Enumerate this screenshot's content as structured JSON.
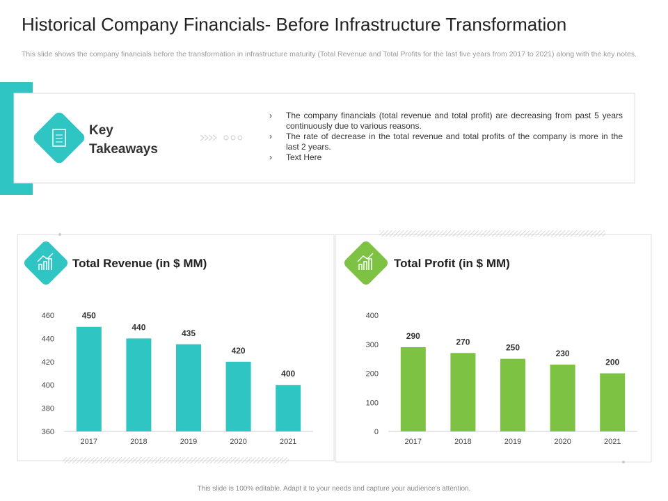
{
  "title": "Historical Company Financials- Before Infrastructure Transformation",
  "subtitle": "This slide shows the company financials before the transformation in infrastructure maturity (Total Revenue and Total Profits for the last five years from 2017 to 2021) along with the key notes.",
  "takeaways": {
    "heading": "Key Takeaways",
    "points": [
      "The company financials (total revenue and total profit) are decreasing from past 5 years continuously due to various reasons.",
      "The rate of decrease in the total revenue and total profits of the company is more in the last 2 years.",
      "Text Here"
    ]
  },
  "footer": "This slide is 100% editable. Adapt it to your needs and capture your audience's attention.",
  "chart_data": [
    {
      "type": "bar",
      "title": "Total Revenue (in $ MM)",
      "categories": [
        "2017",
        "2018",
        "2019",
        "2020",
        "2021"
      ],
      "values": [
        450,
        440,
        435,
        420,
        400
      ],
      "color": "#2ec5c3",
      "ylim": [
        360,
        460
      ],
      "yticks": [
        360,
        380,
        400,
        420,
        440,
        460
      ]
    },
    {
      "type": "bar",
      "title": "Total Profit (in $ MM)",
      "categories": [
        "2017",
        "2018",
        "2019",
        "2020",
        "2021"
      ],
      "values": [
        290,
        270,
        250,
        230,
        200
      ],
      "color": "#7dc242",
      "ylim": [
        0,
        400
      ],
      "yticks": [
        0,
        100,
        200,
        300,
        400
      ]
    }
  ]
}
